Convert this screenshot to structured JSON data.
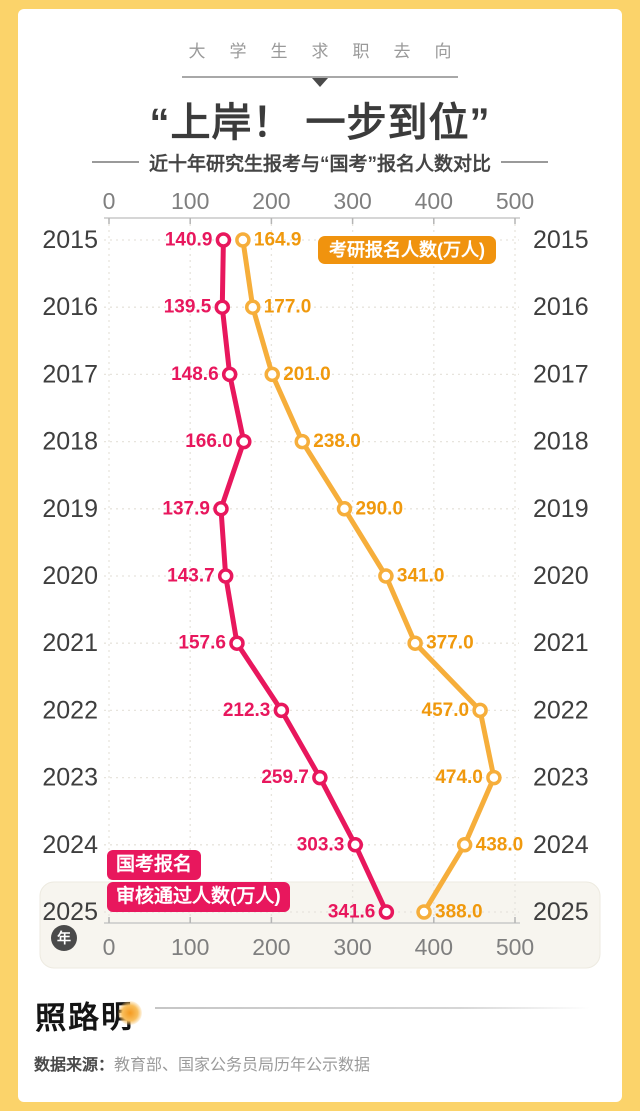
{
  "header": {
    "eyebrow": "大学生求职去向",
    "title": "“上岸！ 一步到位”",
    "subtitle": "近十年研究生报考与“国考”报名人数对比"
  },
  "chart_data": {
    "type": "line",
    "title": "“上岸！ 一步到位”",
    "subtitle": "近十年研究生报考与“国考”报名人数对比",
    "orientation": "horizontal-values-vertical-years",
    "grid": "dotted",
    "value_axis_ticks": [
      0,
      100,
      200,
      300,
      400,
      500
    ],
    "value_axis_lim": [
      0,
      500
    ],
    "year_axis_unit": "年",
    "categories": [
      "2015",
      "2016",
      "2017",
      "2018",
      "2019",
      "2020",
      "2021",
      "2022",
      "2023",
      "2024",
      "2025"
    ],
    "highlight_category": "2025",
    "series": [
      {
        "name": "考研报名人数(万人)",
        "legend_lines": [
          "考研报名人数(万人)"
        ],
        "color": "#F6AE3B",
        "label_color": "#F0990D",
        "badge_bg": "#F0930E",
        "values": [
          164.9,
          177.0,
          201.0,
          238.0,
          290.0,
          341.0,
          377.0,
          457.0,
          474.0,
          438.0,
          388.0
        ],
        "value_labels": [
          "164.9",
          "177.0",
          "201.0",
          "238.0",
          "290.0",
          "341.0",
          "377.0",
          "457.0",
          "474.0",
          "438.0",
          "388.0"
        ],
        "value_label_side": [
          "right",
          "right",
          "right",
          "right",
          "right",
          "right",
          "right",
          "left",
          "left",
          "right",
          "right"
        ]
      },
      {
        "name": "国考报名审核通过人数(万人)",
        "legend_lines": [
          "国考报名",
          "审核通过人数(万人)"
        ],
        "color": "#E8175D",
        "label_color": "#E8175D",
        "badge_bg": "#E8175D",
        "values": [
          140.9,
          139.5,
          148.6,
          166.0,
          137.9,
          143.7,
          157.6,
          212.3,
          259.7,
          303.3,
          341.6
        ],
        "value_labels": [
          "140.9",
          "139.5",
          "148.6",
          "166.0",
          "137.9",
          "143.7",
          "157.6",
          "212.3",
          "259.7",
          "303.3",
          "341.6"
        ],
        "value_label_side": [
          "left",
          "left",
          "left",
          "left",
          "left",
          "left",
          "left",
          "left",
          "left",
          "left",
          "left"
        ]
      }
    ]
  },
  "footer": {
    "logo": "照路明",
    "source_label": "数据来源：",
    "source_text": "教育部、国家公务员局历年公示数据"
  },
  "colors": {
    "frame_yellow": "#FBD36A",
    "card_white": "#FFFFFF",
    "year_label": "#3E3E3E",
    "axis_number": "#7F7F7F",
    "grid_dotted": "#E7E4DD",
    "highlight_box_bg": "#F7F5EF"
  }
}
